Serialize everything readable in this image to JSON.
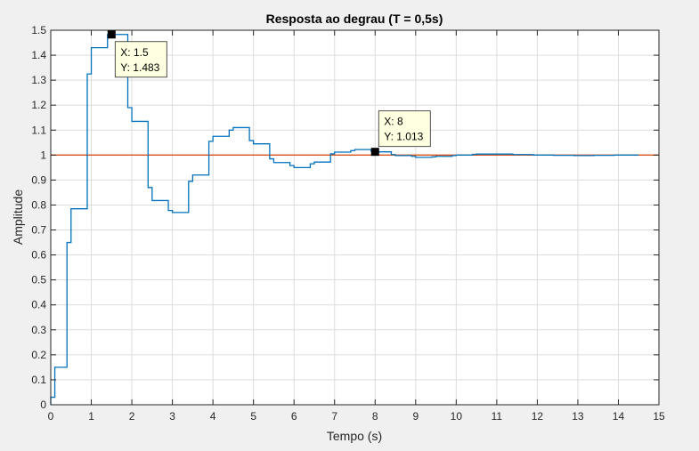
{
  "chart_data": {
    "type": "line",
    "title": "Resposta ao degrau (T = 0,5s)",
    "xlabel": "Tempo (s)",
    "ylabel": "Amplitude",
    "xlim": [
      0,
      15
    ],
    "ylim": [
      0,
      1.5
    ],
    "xticks": [
      0,
      1,
      2,
      3,
      4,
      5,
      6,
      7,
      8,
      9,
      10,
      11,
      12,
      13,
      14,
      15
    ],
    "xtick_labels": [
      "0",
      "1",
      "2",
      "3",
      "4",
      "5",
      "6",
      "7",
      "8",
      "9",
      "10",
      "11",
      "12",
      "13",
      "14",
      "15"
    ],
    "yticks": [
      0,
      0.1,
      0.2,
      0.3,
      0.4,
      0.5,
      0.6,
      0.7,
      0.8,
      0.9,
      1,
      1.1,
      1.2,
      1.3,
      1.4,
      1.5
    ],
    "ytick_labels": [
      "0",
      "0.1",
      "0.2",
      "0.3",
      "0.4",
      "0.5",
      "0.6",
      "0.7",
      "0.8",
      "0.9",
      "1",
      "1.1",
      "1.2",
      "1.3",
      "1.4",
      "1.5"
    ],
    "grid": true,
    "reference_line": {
      "y": 1,
      "color": "#d95319"
    },
    "series": [
      {
        "style": "stairs",
        "color": "#0072bd",
        "x": [
          0,
          0.1,
          0.4,
          0.5,
          0.9,
          1.0,
          1.4,
          1.5,
          1.9,
          2.0,
          2.4,
          2.5,
          2.9,
          3.0,
          3.4,
          3.5,
          3.9,
          4.0,
          4.4,
          4.5,
          4.9,
          5.0,
          5.4,
          5.5,
          5.9,
          6.0,
          6.4,
          6.5,
          6.9,
          7.0,
          7.4,
          7.5,
          7.9,
          8.0,
          8.4,
          8.5,
          8.9,
          9.0,
          9.4,
          9.5,
          9.9,
          10.0,
          10.4,
          10.5,
          11.4,
          11.9,
          12.4,
          12.9,
          13.4,
          13.9,
          14.4
        ],
        "y": [
          0.03,
          0.15,
          0.65,
          0.785,
          1.325,
          1.43,
          1.483,
          1.483,
          1.19,
          1.135,
          0.87,
          0.818,
          0.778,
          0.77,
          0.895,
          0.92,
          1.055,
          1.075,
          1.1,
          1.11,
          1.058,
          1.045,
          0.985,
          0.97,
          0.958,
          0.95,
          0.965,
          0.972,
          1.005,
          1.012,
          1.018,
          1.022,
          1.015,
          1.013,
          1.002,
          0.998,
          0.995,
          0.991,
          0.993,
          0.995,
          0.998,
          1.0,
          1.003,
          1.004,
          1.002,
          1.0,
          0.999,
          0.998,
          0.999,
          1.0,
          1.0
        ],
        "end_x": 14.5
      }
    ],
    "datatips": [
      {
        "x": 1.5,
        "y": 1.483,
        "line1": "X: 1.5",
        "line2": "Y: 1.483"
      },
      {
        "x": 8,
        "y": 1.013,
        "line1": "X: 8",
        "line2": "Y: 1.013"
      }
    ]
  }
}
